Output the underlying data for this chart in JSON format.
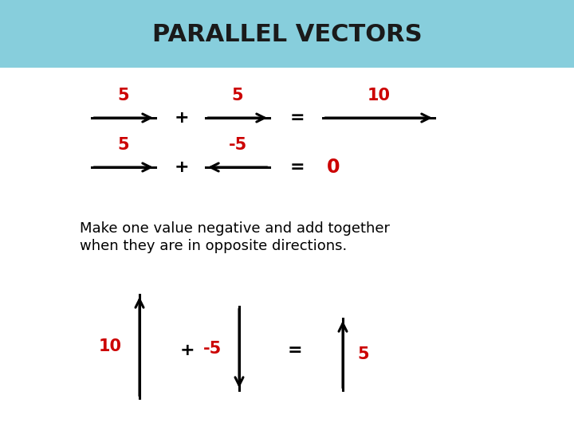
{
  "title": "PARALLEL VECTORS",
  "title_bg_color": "#87cedc",
  "title_text_color": "#1a1a1a",
  "body_bg_color": "#ffffff",
  "red_color": "#cc0000",
  "black_color": "#000000",
  "subtitle_line1": "Make one value negative and add together",
  "subtitle_line2": "when they are in opposite directions.",
  "row1_label1": "5",
  "row1_label2": "5",
  "row1_label3": "10",
  "row2_label1": "5",
  "row2_label2": "-5",
  "row2_label3": "0",
  "row3_label1": "10",
  "row3_label2": "-5",
  "row3_label3": "5",
  "title_fontsize": 22,
  "label_fontsize": 15,
  "plus_eq_fontsize": 16,
  "subtitle_fontsize": 13
}
